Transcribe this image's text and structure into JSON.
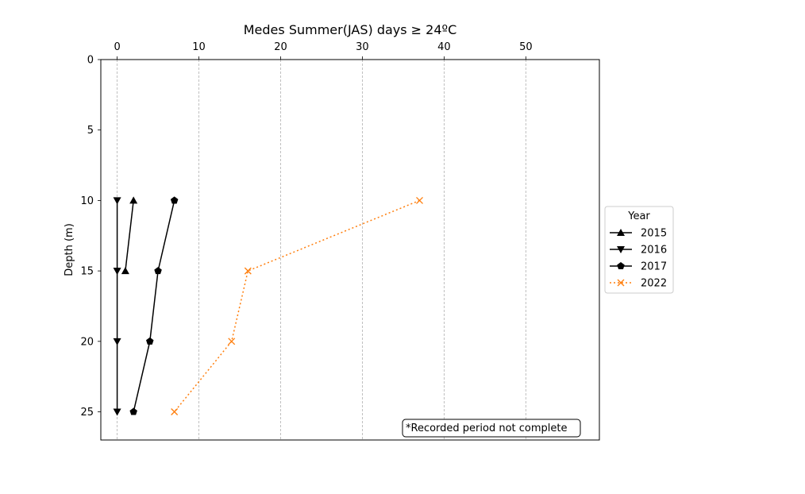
{
  "chart_data": {
    "type": "line",
    "title": "Medes Summer(JAS) days ≥ 24ºC",
    "xlabel": "",
    "ylabel": "Depth (m)",
    "x_axis_position": "top",
    "y_inverted": true,
    "xlim": [
      -2,
      59
    ],
    "ylim": [
      27,
      0
    ],
    "xticks": [
      0,
      10,
      20,
      30,
      40,
      50
    ],
    "yticks": [
      0,
      5,
      10,
      15,
      20,
      25
    ],
    "grid": "vertical dashed",
    "series": [
      {
        "name": "2015",
        "color": "#000000",
        "linestyle": "solid",
        "marker": "triangle-up",
        "points": [
          {
            "x": 2,
            "y": 10
          },
          {
            "x": 1,
            "y": 15
          }
        ]
      },
      {
        "name": "2016",
        "color": "#000000",
        "linestyle": "solid",
        "marker": "triangle-down",
        "points": [
          {
            "x": 0,
            "y": 10
          },
          {
            "x": 0,
            "y": 15
          },
          {
            "x": 0,
            "y": 20
          },
          {
            "x": 0,
            "y": 25
          }
        ]
      },
      {
        "name": "2017",
        "color": "#000000",
        "linestyle": "solid",
        "marker": "pentagon",
        "points": [
          {
            "x": 7,
            "y": 10
          },
          {
            "x": 5,
            "y": 15
          },
          {
            "x": 4,
            "y": 20
          },
          {
            "x": 2,
            "y": 25
          }
        ]
      },
      {
        "name": "2022",
        "color": "#ff7f0e",
        "linestyle": "dotted",
        "marker": "x",
        "points": [
          {
            "x": 37,
            "y": 10
          },
          {
            "x": 16,
            "y": 15
          },
          {
            "x": 14,
            "y": 20
          },
          {
            "x": 7,
            "y": 25
          }
        ]
      }
    ],
    "legend": {
      "title": "Year",
      "placement": "outside-right"
    },
    "annotation": "*Recorded period not complete"
  }
}
